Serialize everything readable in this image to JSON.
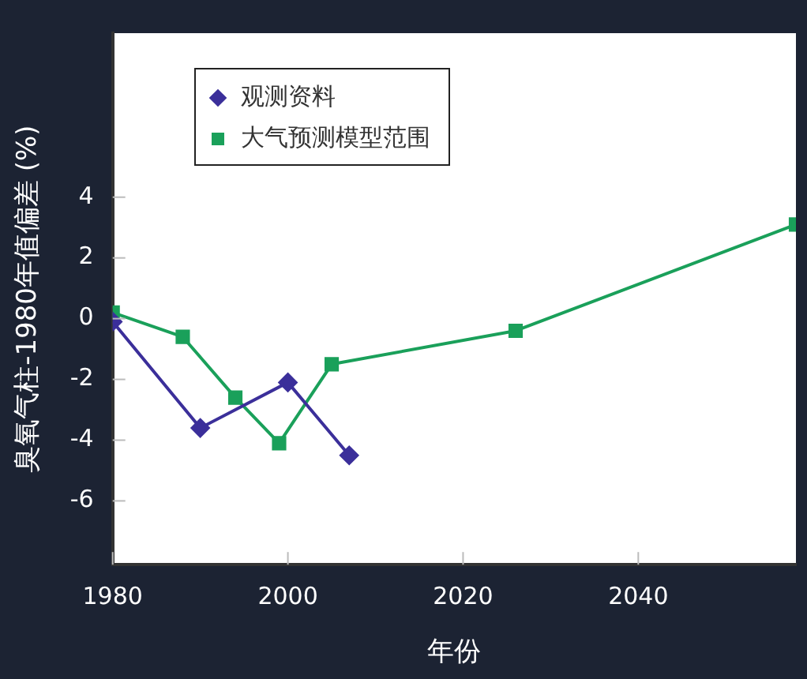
{
  "chart_data": {
    "type": "line",
    "xlabel": "年份",
    "ylabel": "臭氧气柱-1980年值偏差 (%)",
    "xlim": [
      1980,
      2058
    ],
    "xticks": [
      1980,
      2000,
      2020,
      2040
    ],
    "ylim": [
      -8.1,
      9.4
    ],
    "yticks": [
      -6,
      -4,
      -2,
      0,
      2,
      4
    ],
    "grid": false,
    "legend": "top left",
    "series": [
      {
        "name": "观测资料",
        "color": "#3b2f9a",
        "marker": "diamond",
        "x": [
          1980,
          1990,
          2000,
          2007
        ],
        "values": [
          -0.1,
          -3.6,
          -2.1,
          -4.5
        ]
      },
      {
        "name": "大气预测模型范围",
        "color": "#1aa05a",
        "marker": "square",
        "x": [
          1980,
          1988,
          1994,
          1999,
          2005,
          2026,
          2058
        ],
        "values": [
          0.2,
          -0.6,
          -2.6,
          -4.1,
          -1.5,
          -0.4,
          3.1
        ]
      }
    ]
  }
}
